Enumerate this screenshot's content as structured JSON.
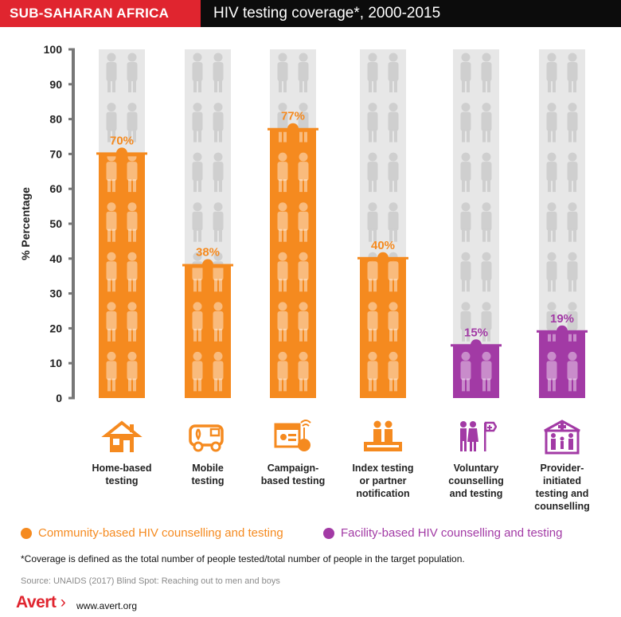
{
  "header": {
    "region": "SUB-SAHARAN AFRICA",
    "title": "HIV testing coverage*, 2000-2015"
  },
  "chart_data": {
    "type": "bar",
    "title": "HIV testing coverage*, 2000-2015",
    "ylabel": "% Percentage",
    "ylim": [
      0,
      100
    ],
    "yticks": [
      0,
      10,
      20,
      30,
      40,
      50,
      60,
      70,
      80,
      90,
      100
    ],
    "categories": [
      "Home-based\ntesting",
      "Mobile\ntesting",
      "Campaign-\nbased testing",
      "Index testing\nor partner\nnotification",
      "Voluntary\ncounselling\nand testing",
      "Provider-\ninitiated\ntesting and\ncounselling"
    ],
    "values": [
      70,
      38,
      77,
      40,
      15,
      19
    ],
    "value_labels": [
      "70%",
      "38%",
      "77%",
      "40%",
      "15%",
      "19%"
    ],
    "groups": [
      "community",
      "community",
      "community",
      "community",
      "facility",
      "facility"
    ],
    "series": [
      {
        "name": "Community-based HIV counselling and testing",
        "color": "#f58a1f"
      },
      {
        "name": "Facility-based HIV counselling and testing",
        "color": "#a23aa5"
      }
    ],
    "grid": false,
    "legend_position": "bottom"
  },
  "colors": {
    "community": "#f58a1f",
    "facility": "#a23aa5",
    "background_bar": "#e7e7e7",
    "brand_red": "#e0252f"
  },
  "icons": [
    "house-icon",
    "van-icon",
    "campaign-screen-icon",
    "couple-icon",
    "people-sign-icon",
    "hospital-family-icon"
  ],
  "legend": {
    "community": "Community-based HIV counselling and testing",
    "facility": "Facility-based HIV counselling and testing"
  },
  "footnote": "*Coverage is defined as the total number of people tested/total number of people in the target population.",
  "source": "Source: UNAIDS (2017) Blind Spot: Reaching out to men and boys",
  "brand": {
    "logo": "Avert",
    "url": "www.avert.org"
  }
}
